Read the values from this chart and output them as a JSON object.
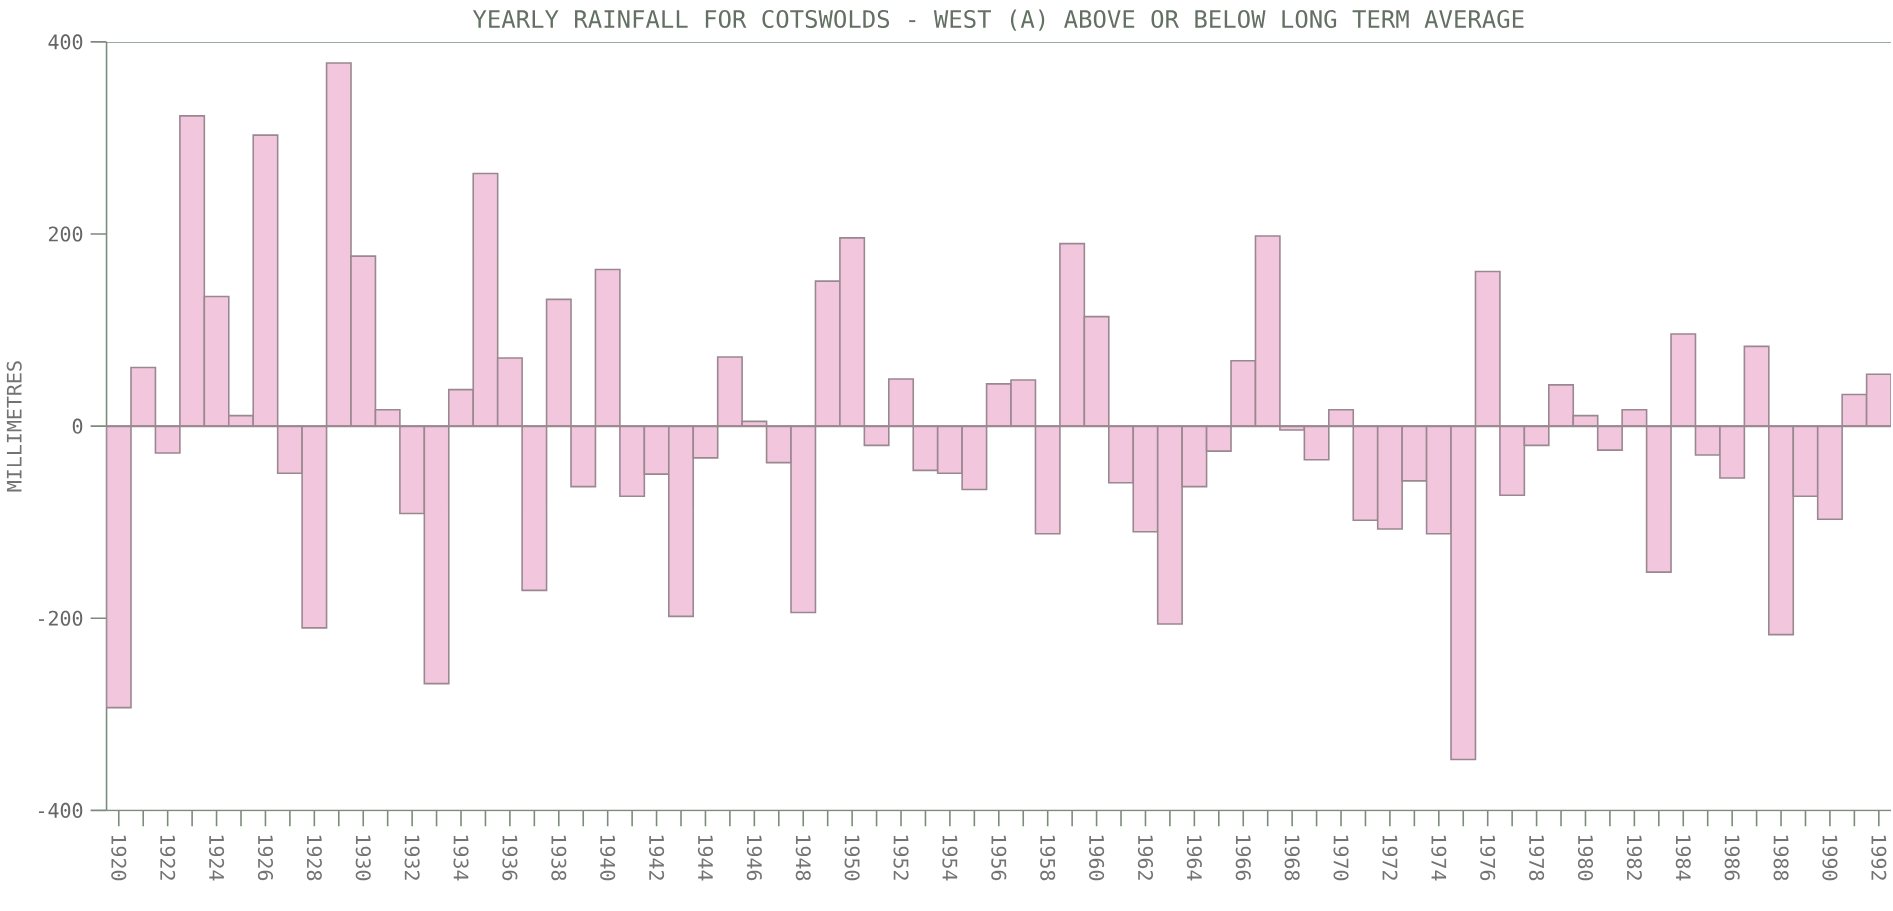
{
  "chart_data": {
    "type": "bar",
    "title": "YEARLY RAINFALL FOR COTSWOLDS - WEST (A) ABOVE OR BELOW LONG TERM AVERAGE",
    "ylabel": "MILLIMETRES",
    "categories": [
      "1920",
      null,
      "1922",
      null,
      "1924",
      null,
      "1926",
      null,
      "1928",
      null,
      "1930",
      null,
      "1932",
      null,
      "1934",
      null,
      "1936",
      null,
      "1938",
      null,
      "1940",
      null,
      "1942",
      null,
      "1944",
      null,
      "1946",
      null,
      "1948",
      null,
      "1950",
      null,
      "1952",
      null,
      "1954",
      null,
      "1956",
      null,
      "1958",
      null,
      "1960",
      null,
      "1962",
      null,
      "1964",
      null,
      "1966",
      null,
      "1968",
      null,
      "1970",
      null,
      "1972",
      null,
      "1974",
      null,
      "1976",
      null,
      "1978",
      null,
      "1980",
      null,
      "1982",
      null,
      "1984",
      null,
      "1986",
      null,
      "1988",
      null,
      "1990",
      null,
      "1992"
    ],
    "values": [
      -293,
      61,
      -28,
      323,
      135,
      11,
      303,
      -49,
      -210,
      378,
      177,
      17,
      -91,
      -268,
      38,
      263,
      71,
      -171,
      132,
      -63,
      163,
      -73,
      -50,
      -198,
      -33,
      72,
      5,
      -38,
      -194,
      151,
      196,
      -20,
      49,
      -46,
      -49,
      -66,
      44,
      48,
      -112,
      190,
      114,
      -59,
      -110,
      -206,
      -63,
      -26,
      68,
      198,
      -4,
      -35,
      17,
      -98,
      -107,
      -57,
      -112,
      -347,
      161,
      -72,
      -20,
      43,
      11,
      -25,
      17,
      -152,
      96,
      -30,
      -54,
      83,
      -217,
      -73,
      -97,
      33,
      54
    ],
    "color": "#f2c6dc",
    "ylim": [
      -400,
      400
    ],
    "yticks": [
      -400,
      -200,
      0,
      200,
      400
    ]
  }
}
